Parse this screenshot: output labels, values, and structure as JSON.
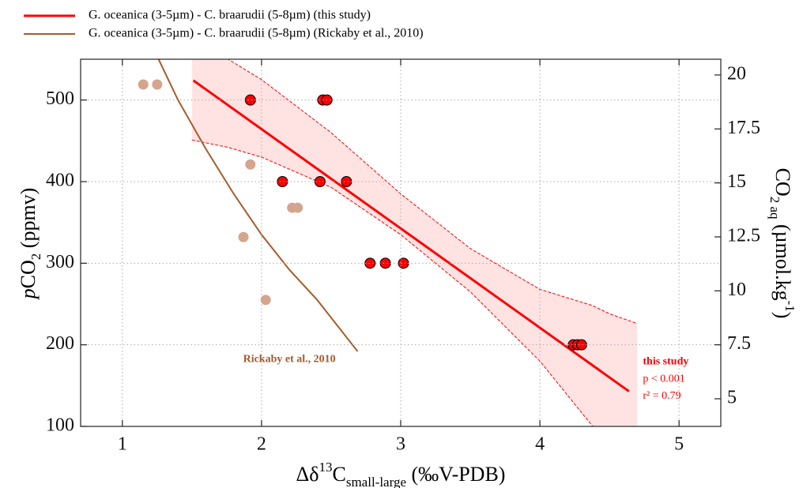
{
  "chart_data": {
    "type": "scatter",
    "xlabel": [
      "Δδ",
      "13",
      "C",
      "small-large",
      " (‰V-PDB)"
    ],
    "ylabel": [
      "p",
      "CO",
      "2",
      " (ppmv)"
    ],
    "y2label": [
      "CO",
      "2 aq",
      " (µmol.kg",
      "-1",
      ")"
    ],
    "xlim": [
      0.7,
      5.3
    ],
    "xticks": [
      1,
      2,
      3,
      4,
      5
    ],
    "ylim": [
      100,
      550
    ],
    "yticks": [
      100,
      200,
      300,
      400,
      500
    ],
    "y2lim": [
      3.72,
      20.73
    ],
    "y2ticks": [
      5,
      7.5,
      10,
      12.5,
      15,
      17.5,
      20
    ],
    "grid": true,
    "legend": "top-left",
    "band": {
      "color": "#ffe3e3",
      "edge_color": "#ff0000",
      "x": [
        1.5,
        1.76,
        2.0,
        2.5,
        3.0,
        3.5,
        4.0,
        4.38,
        4.5,
        4.7
      ],
      "upper": [
        590,
        550,
        525,
        460,
        385,
        318,
        268,
        248,
        238,
        226
      ],
      "lower": [
        451,
        442,
        430,
        393,
        335,
        265,
        180,
        100,
        72,
        30
      ]
    },
    "series": [
      {
        "name": "G. oceanica (3-5µm) - C. braarudii (5-8µm) (this study)",
        "kind": "line",
        "color": "#ff0000",
        "width": 3,
        "x": [
          1.51,
          4.64
        ],
        "values": [
          524,
          143
        ]
      },
      {
        "name": "G. oceanica (3-5µm) - C. braarudii (5-8µm) (Rickaby et al., 2010)",
        "kind": "line",
        "color": "#a65b2a",
        "width": 2,
        "x": [
          1.26,
          1.4,
          1.6,
          1.8,
          2.0,
          2.2,
          2.4,
          2.69
        ],
        "values": [
          550,
          500,
          440,
          385,
          335,
          292,
          255,
          192
        ]
      },
      {
        "kind": "scatter",
        "color": "#d4a58c",
        "stroke": "none",
        "x": [
          1.15,
          1.25,
          1.92,
          1.87,
          2.22,
          2.26,
          2.03
        ],
        "values": [
          519,
          519,
          421,
          332,
          368,
          368,
          255
        ]
      },
      {
        "kind": "scatter",
        "color": "#ff0000",
        "stroke": "#000000",
        "x": [
          1.92,
          2.44,
          2.47,
          2.15,
          2.42,
          2.61,
          2.78,
          2.89,
          3.02,
          4.24,
          4.27,
          4.3
        ],
        "values": [
          500,
          500,
          500,
          400,
          400,
          400,
          300,
          300,
          300,
          200,
          200,
          200
        ]
      }
    ],
    "annotations": [
      {
        "text": "Rickaby et al., 2010",
        "color": "#a65b2a",
        "x": 2.2,
        "y": 182
      },
      {
        "text": "this study",
        "color": "#ff0000",
        "x": 4.74,
        "y": 179
      },
      {
        "text": "p < 0.001",
        "color": "#ff0000",
        "x": 4.74,
        "y": 158
      },
      {
        "text": "r² = 0.79",
        "color": "#ff0000",
        "x": 4.74,
        "y": 137
      }
    ]
  }
}
